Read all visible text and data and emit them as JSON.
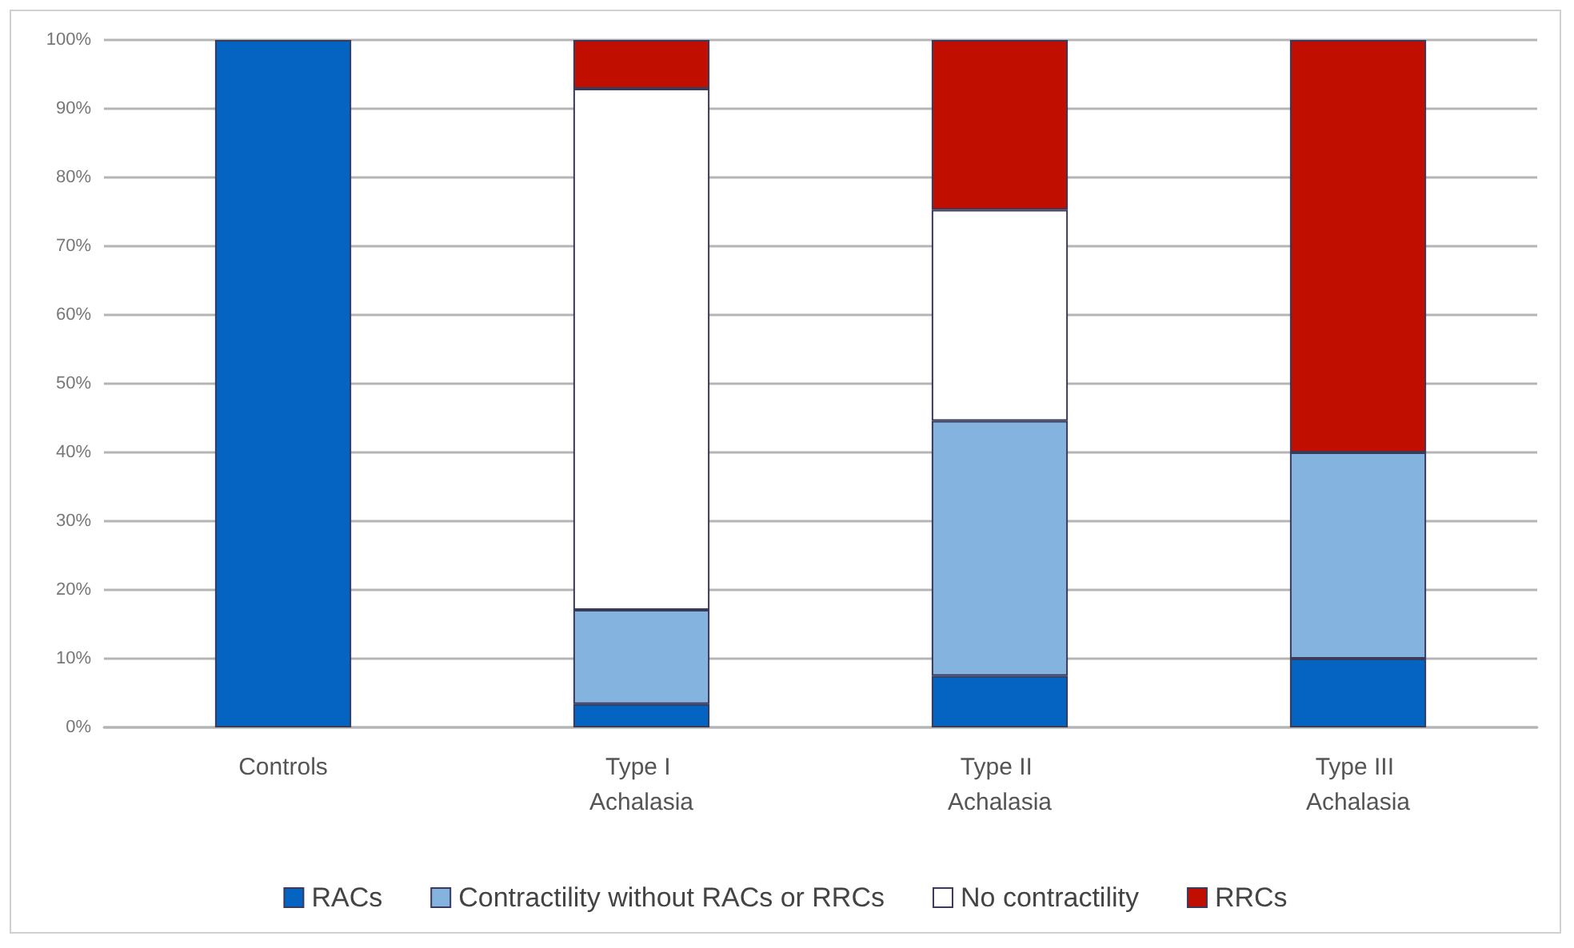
{
  "chart_data": {
    "type": "bar",
    "stacked": true,
    "categories": [
      "Controls",
      "Type I Achalasia",
      "Type II Achalasia",
      "Type III Achalasia"
    ],
    "series": [
      {
        "name": "RACs",
        "color": "#0563c1",
        "values": [
          100,
          3.4,
          7.5,
          10
        ]
      },
      {
        "name": "Contractility without RACs or RRCs",
        "color": "#85b3e0",
        "values": [
          0,
          13.7,
          37.1,
          30
        ]
      },
      {
        "name": "No contractility",
        "color": "#ffffff",
        "values": [
          0,
          75.8,
          30.7,
          0
        ]
      },
      {
        "name": "RRCs",
        "color": "#c00f00",
        "values": [
          0,
          7.1,
          24.7,
          60
        ]
      }
    ],
    "ylim": [
      0,
      100
    ],
    "yticks": [
      {
        "value": 0,
        "label": "0%"
      },
      {
        "value": 10,
        "label": "10%"
      },
      {
        "value": 20,
        "label": "20%"
      },
      {
        "value": 30,
        "label": "30%"
      },
      {
        "value": 40,
        "label": "40%"
      },
      {
        "value": 50,
        "label": "50%"
      },
      {
        "value": 60,
        "label": "60%"
      },
      {
        "value": 70,
        "label": "70%"
      },
      {
        "value": 80,
        "label": "80%"
      },
      {
        "value": 90,
        "label": "90%"
      },
      {
        "value": 100,
        "label": "100%"
      }
    ],
    "grid": "y",
    "legend": "bottom"
  }
}
